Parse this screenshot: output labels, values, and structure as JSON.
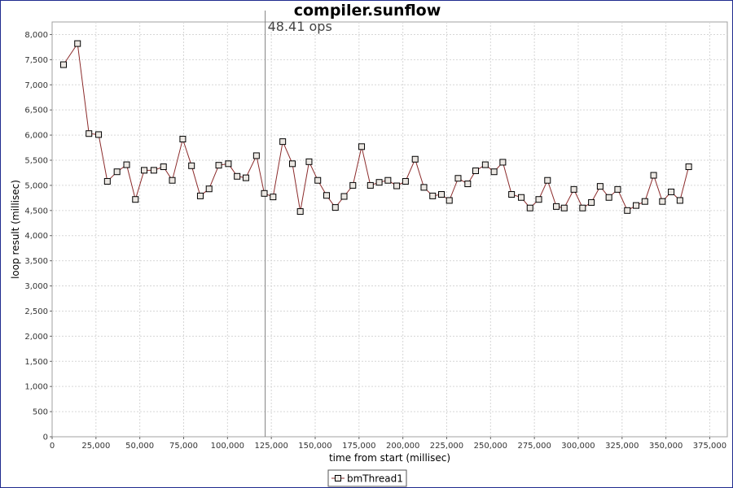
{
  "chart_data": {
    "type": "line",
    "title": "compiler.sunflow",
    "xlabel": "time from start (millisec)",
    "ylabel": "loop result (millisec)",
    "xlim": [
      0,
      385000
    ],
    "ylim": [
      0,
      8250
    ],
    "x_ticks": [
      0,
      25000,
      50000,
      75000,
      100000,
      125000,
      150000,
      175000,
      200000,
      225000,
      250000,
      275000,
      300000,
      325000,
      350000,
      375000
    ],
    "x_tick_labels": [
      "0",
      "25,000",
      "50,000",
      "75,000",
      "100,000",
      "125,000",
      "150,000",
      "175,000",
      "200,000",
      "225,000",
      "250,000",
      "275,000",
      "300,000",
      "325,000",
      "350,000",
      "375,000"
    ],
    "y_ticks": [
      0,
      500,
      1000,
      1500,
      2000,
      2500,
      3000,
      3500,
      4000,
      4500,
      5000,
      5500,
      6000,
      6500,
      7000,
      7500,
      8000
    ],
    "y_tick_labels": [
      "0",
      "500",
      "1,000",
      "1,500",
      "2,000",
      "2,500",
      "3,000",
      "3,500",
      "4,000",
      "4,500",
      "5,000",
      "5,500",
      "6,000",
      "6,500",
      "7,000",
      "7,500",
      "8,000"
    ],
    "grid": true,
    "legend_position": "bottom-center",
    "marker": {
      "x": 121500,
      "label": "48.41 ops"
    },
    "series": [
      {
        "name": "bmThread1",
        "color": "#8b2a2a",
        "marker_fill": "#ece8e3",
        "x": [
          6500,
          14500,
          21000,
          26500,
          31500,
          37000,
          42500,
          47500,
          52500,
          58000,
          63500,
          68500,
          74500,
          79500,
          84500,
          89500,
          95000,
          100500,
          105500,
          110500,
          116500,
          121000,
          126000,
          131500,
          137000,
          141500,
          146500,
          151500,
          156500,
          161500,
          166500,
          171500,
          176500,
          181500,
          186500,
          191500,
          196500,
          201500,
          207000,
          212000,
          217000,
          222000,
          226500,
          231500,
          237000,
          241500,
          247000,
          252000,
          257000,
          262000,
          267500,
          272500,
          277500,
          282500,
          287500,
          292000,
          297500,
          302500,
          307500,
          312500,
          317500,
          322500,
          328000,
          333000,
          338000,
          343000,
          348000,
          353000,
          358000,
          363000
        ],
        "y": [
          7400,
          7820,
          6030,
          6010,
          5080,
          5270,
          5410,
          4720,
          5300,
          5300,
          5370,
          5100,
          5920,
          5390,
          4790,
          4930,
          5400,
          5430,
          5180,
          5150,
          5590,
          4840,
          4770,
          5870,
          5430,
          4480,
          5470,
          5100,
          4800,
          4560,
          4780,
          5000,
          5770,
          5000,
          5060,
          5100,
          4990,
          5080,
          5520,
          4960,
          4790,
          4820,
          4700,
          5140,
          5030,
          5290,
          5410,
          5270,
          5460,
          4820,
          4760,
          4550,
          4720,
          5100,
          4580,
          4550,
          4920,
          4550,
          4660,
          4980,
          4760,
          4920,
          4500,
          4600,
          4680,
          5200,
          4680,
          4870,
          4700,
          5370
        ]
      }
    ]
  }
}
